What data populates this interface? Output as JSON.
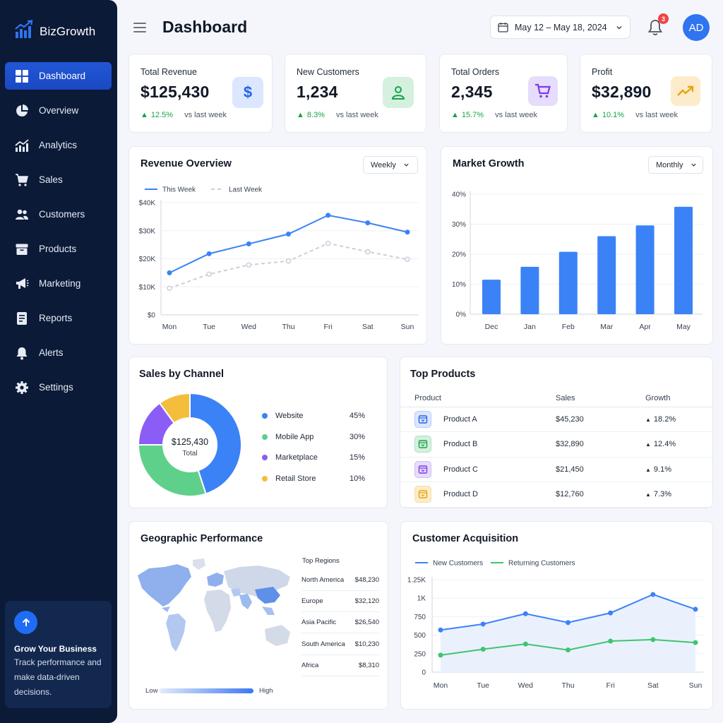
{
  "brand": {
    "name": "BizGrowth"
  },
  "sidebar": {
    "items": [
      {
        "label": "Dashboard",
        "icon": "grid-icon",
        "active": true
      },
      {
        "label": "Overview",
        "icon": "pie-icon"
      },
      {
        "label": "Analytics",
        "icon": "analytics-icon"
      },
      {
        "label": "Sales",
        "icon": "cart-icon"
      },
      {
        "label": "Customers",
        "icon": "users-icon"
      },
      {
        "label": "Products",
        "icon": "box-icon"
      },
      {
        "label": "Marketing",
        "icon": "megaphone-icon"
      },
      {
        "label": "Reports",
        "icon": "report-icon"
      },
      {
        "label": "Alerts",
        "icon": "bell-icon"
      },
      {
        "label": "Settings",
        "icon": "gear-icon"
      }
    ],
    "promo": {
      "title": "Grow Your Business",
      "text": "Track performance and make data-driven decisions."
    }
  },
  "header": {
    "title": "Dashboard",
    "date_range": "May 12 – May 18, 2024",
    "notifications": "3",
    "avatar_initials": "AD"
  },
  "kpis": [
    {
      "label": "Total Revenue",
      "value": "$125,430",
      "change": "12.5%",
      "sub": "vs last week",
      "icon": "dollar-icon",
      "color": "#2563eb",
      "bg": "#dbe7fd"
    },
    {
      "label": "New Customers",
      "value": "1,234",
      "change": "8.3%",
      "sub": "vs last week",
      "icon": "user-icon",
      "color": "#16a34a",
      "bg": "#d5f0df"
    },
    {
      "label": "Total Orders",
      "value": "2,345",
      "change": "15.7%",
      "sub": "vs last week",
      "icon": "cart-icon",
      "color": "#7c3aed",
      "bg": "#e6dcfb"
    },
    {
      "label": "Profit",
      "value": "$32,890",
      "change": "10.1%",
      "sub": "vs last week",
      "icon": "trend-up-icon",
      "color": "#e5a50a",
      "bg": "#fdeccb"
    }
  ],
  "revenue_overview": {
    "title": "Revenue Overview",
    "period": "Weekly"
  },
  "market_growth": {
    "title": "Market Growth",
    "period": "Monthly"
  },
  "sales_channel": {
    "title": "Sales by Channel",
    "center_value": "$125,430",
    "center_label": "Total"
  },
  "top_products": {
    "title": "Top Products",
    "columns": [
      "Product",
      "Sales",
      "Growth"
    ],
    "rows": [
      {
        "name": "Product A",
        "sales": "$45,230",
        "growth": "18.2%",
        "color": "#2563eb",
        "bg": "#dbe7fd"
      },
      {
        "name": "Product B",
        "sales": "$32,890",
        "growth": "12.4%",
        "color": "#16a34a",
        "bg": "#d5f0df"
      },
      {
        "name": "Product C",
        "sales": "$21,450",
        "growth": "9.1%",
        "color": "#7c3aed",
        "bg": "#e6dcfb"
      },
      {
        "name": "Product D",
        "sales": "$12,760",
        "growth": "7.3%",
        "color": "#e5a50a",
        "bg": "#fdeccb"
      }
    ]
  },
  "geo": {
    "title": "Geographic Performance",
    "regions_title": "Top Regions",
    "regions": [
      {
        "name": "North America",
        "value": "$48,230"
      },
      {
        "name": "Europe",
        "value": "$32,120"
      },
      {
        "name": "Asia Pacific",
        "value": "$26,540"
      },
      {
        "name": "South America",
        "value": "$10,230"
      },
      {
        "name": "Africa",
        "value": "$8,310"
      }
    ],
    "scale_low": "Low",
    "scale_high": "High"
  },
  "acquisition": {
    "title": "Customer Acquisition"
  },
  "chart_data": [
    {
      "type": "line",
      "title": "Revenue Overview",
      "categories": [
        "Mon",
        "Tue",
        "Wed",
        "Thu",
        "Fri",
        "Sat",
        "Sun"
      ],
      "y_ticks": [
        "$0",
        "$10K",
        "$20K",
        "$30K",
        "$40K"
      ],
      "ylim": [
        0,
        40000
      ],
      "series": [
        {
          "name": "This Week",
          "values": [
            15000,
            21800,
            25300,
            28800,
            35500,
            32800,
            29500
          ],
          "color": "#3b82f6"
        },
        {
          "name": "Last Week",
          "values": [
            9500,
            14500,
            17800,
            19200,
            25500,
            22500,
            19800
          ],
          "color": "#c9cfdb"
        }
      ]
    },
    {
      "type": "bar",
      "title": "Market Growth",
      "categories": [
        "Dec",
        "Jan",
        "Feb",
        "Mar",
        "Apr",
        "May"
      ],
      "values": [
        11.5,
        15.8,
        20.8,
        26,
        29.6,
        35.8
      ],
      "y_ticks": [
        "0%",
        "10%",
        "20%",
        "30%",
        "40%"
      ],
      "ylim": [
        0,
        40
      ],
      "color": "#3b82f6"
    },
    {
      "type": "pie",
      "title": "Sales by Channel",
      "slices": [
        {
          "name": "Website",
          "value": 45,
          "label": "45%",
          "color": "#3b82f6"
        },
        {
          "name": "Mobile App",
          "value": 30,
          "label": "30%",
          "color": "#5fd08a"
        },
        {
          "name": "Marketplace",
          "value": 15,
          "label": "15%",
          "color": "#8b5cf6"
        },
        {
          "name": "Retail Store",
          "value": 10,
          "label": "10%",
          "color": "#f5bd3c"
        }
      ]
    },
    {
      "type": "line",
      "title": "Customer Acquisition",
      "categories": [
        "Mon",
        "Tue",
        "Wed",
        "Thu",
        "Fri",
        "Sat",
        "Sun"
      ],
      "y_ticks": [
        "0",
        "250",
        "500",
        "750",
        "1K",
        "1.25K"
      ],
      "ylim": [
        0,
        1250
      ],
      "series": [
        {
          "name": "New Customers",
          "values": [
            570,
            650,
            790,
            670,
            800,
            1050,
            850
          ],
          "color": "#3b82f6"
        },
        {
          "name": "Returning Customers",
          "values": [
            230,
            310,
            380,
            300,
            420,
            440,
            400
          ],
          "color": "#3fc46f"
        }
      ]
    }
  ]
}
